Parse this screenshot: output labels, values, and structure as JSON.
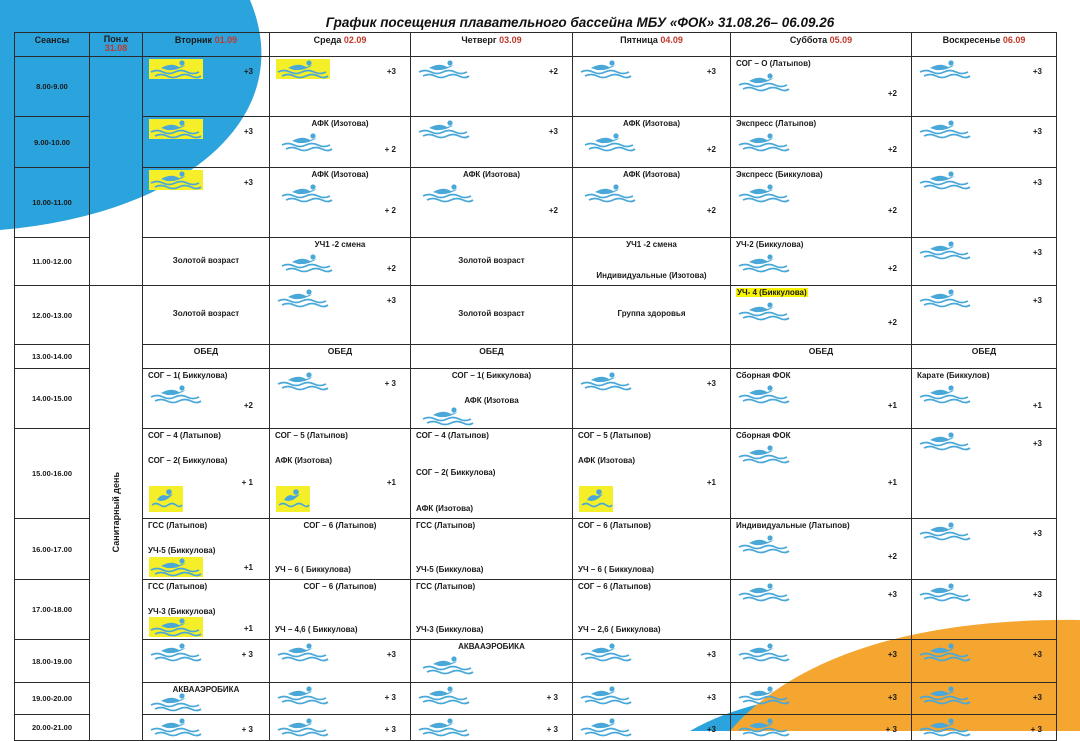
{
  "title": "График посещения плавательного бассейна МБУ «ФОК» 31.08.26– 06.09.26",
  "header": {
    "sessions_label": "Сеансы",
    "monday_label": "Пон.к",
    "monday_date": "31.08",
    "days": [
      {
        "label": "Вторник",
        "date": "01.09"
      },
      {
        "label": "Среда",
        "date": "02.09"
      },
      {
        "label": "Четверг",
        "date": "03.09"
      },
      {
        "label": "Пятница",
        "date": "04.09"
      },
      {
        "label": "Суббота",
        "date": "05.09"
      },
      {
        "label": "Воскресенье",
        "date": "06.09"
      }
    ]
  },
  "sanitary_day": "Санитарный день",
  "lunch_label": "ОБЕД",
  "icons": {
    "swimmer": "swimmer-icon",
    "swimmer_square": "swimmer-square-icon"
  },
  "colors": {
    "wave": "#4aa8d8",
    "highlight": "#f5ef2a",
    "accent_blue": "#2da3dc",
    "accent_orange": "#f4a631",
    "date_red": "#c0392b"
  },
  "rows": [
    {
      "time": "8.00-9.00",
      "cells": [
        {
          "lines": [],
          "count": "+3",
          "swimmers": [
            {
              "hl": true
            }
          ]
        },
        {
          "lines": [],
          "count": "+3",
          "swimmers": [
            {
              "hl": true
            }
          ]
        },
        {
          "lines": [],
          "count": "+2",
          "swimmers": [
            {}
          ]
        },
        {
          "lines": [],
          "count": "+3",
          "swimmers": [
            {}
          ]
        },
        {
          "lines": [
            {
              "text": "СОГ – О (Латыпов)"
            }
          ],
          "count": "+2",
          "swimmers": [
            {}
          ]
        },
        {
          "lines": [],
          "count": "+3",
          "swimmers": [
            {}
          ]
        }
      ]
    },
    {
      "time": "9.00-10.00",
      "cells": [
        {
          "lines": [],
          "count": "+3",
          "swimmers": [
            {
              "hl": true
            }
          ]
        },
        {
          "lines": [
            {
              "text": "АФК (Изотова)",
              "ctr": true
            }
          ],
          "count": "+ 2",
          "swimmers": [
            {}
          ]
        },
        {
          "lines": [],
          "count": "+3",
          "swimmers": [
            {}
          ]
        },
        {
          "lines": [
            {
              "text": "АФК (Изотова)",
              "ctr": true
            }
          ],
          "count": "+2",
          "swimmers": [
            {}
          ]
        },
        {
          "lines": [
            {
              "text": "Экспресс (Латыпов)"
            }
          ],
          "count": "+2",
          "swimmers": [
            {}
          ]
        },
        {
          "lines": [],
          "count": "+3",
          "swimmers": [
            {}
          ]
        }
      ]
    },
    {
      "time": "10.00-11.00",
      "cells": [
        {
          "lines": [],
          "count": "+3",
          "swimmers": [
            {
              "hl": true
            }
          ]
        },
        {
          "lines": [
            {
              "text": "АФК (Изотова)",
              "ctr": true
            }
          ],
          "count": "+ 2",
          "swimmers": [
            {}
          ]
        },
        {
          "lines": [
            {
              "text": "АФК (Изотова)",
              "ctr": true
            }
          ],
          "count": "+2",
          "swimmers": [
            {}
          ]
        },
        {
          "lines": [
            {
              "text": "АФК (Изотова)",
              "ctr": true
            }
          ],
          "count": "+2",
          "swimmers": [
            {}
          ]
        },
        {
          "lines": [
            {
              "text": "Экспресс (Биккулова)"
            }
          ],
          "count": "+2",
          "swimmers": [
            {}
          ]
        },
        {
          "lines": [],
          "count": "+3",
          "swimmers": [
            {}
          ]
        }
      ]
    },
    {
      "time": "11.00-12.00",
      "cells": [
        {
          "lines": [
            {
              "text": "Золотой возраст",
              "ctr": true
            }
          ],
          "count": "",
          "swimmers": []
        },
        {
          "lines": [
            {
              "text": "УЧ1 -2 смена",
              "ctr": true
            }
          ],
          "count": "+2",
          "swimmers": [
            {}
          ]
        },
        {
          "lines": [
            {
              "text": "Золотой возраст",
              "ctr": true
            }
          ],
          "count": "",
          "swimmers": []
        },
        {
          "lines": [
            {
              "text": "УЧ1 -2 смена",
              "ctr": true
            },
            {
              "text": "Индивидуальные (Изотова)",
              "ctr": true
            }
          ],
          "count": "",
          "swimmers": []
        },
        {
          "lines": [
            {
              "text": "УЧ-2 (Биккулова)"
            }
          ],
          "count": "+2",
          "swimmers": [
            {}
          ]
        },
        {
          "lines": [],
          "count": "+3",
          "swimmers": [
            {}
          ]
        }
      ]
    },
    {
      "time": "12.00-13.00",
      "cells": [
        {
          "lines": [
            {
              "text": "Золотой возраст",
              "ctr": true
            }
          ],
          "count": "",
          "swimmers": []
        },
        {
          "lines": [],
          "count": "+3",
          "swimmers": [
            {}
          ]
        },
        {
          "lines": [
            {
              "text": "Золотой возраст",
              "ctr": true
            }
          ],
          "count": "",
          "swimmers": []
        },
        {
          "lines": [
            {
              "text": "Группа здоровья",
              "ctr": true
            }
          ],
          "count": "",
          "swimmers": []
        },
        {
          "lines": [
            {
              "text": "УЧ- 4 (Биккулова)",
              "hl": true
            }
          ],
          "count": "+2",
          "swimmers": [
            {}
          ]
        },
        {
          "lines": [],
          "count": "+3",
          "swimmers": [
            {}
          ]
        }
      ]
    },
    {
      "time": "13.00-14.00",
      "lunch": [
        true,
        true,
        true,
        false,
        true,
        true
      ]
    },
    {
      "time": "14.00-15.00",
      "cells": [
        {
          "lines": [
            {
              "text": "СОГ – 1( Биккулова)"
            }
          ],
          "count": "+2",
          "swimmers": [
            {}
          ]
        },
        {
          "lines": [],
          "count": "+ 3",
          "swimmers": [
            {}
          ]
        },
        {
          "lines": [
            {
              "text": "СОГ – 1( Биккулова)",
              "ctr": true
            },
            {
              "text": "АФК (Изотова",
              "ctr": true
            }
          ],
          "count": "",
          "swimmers": [
            {}
          ]
        },
        {
          "lines": [],
          "count": "+3",
          "swimmers": [
            {}
          ]
        },
        {
          "lines": [
            {
              "text": "Сборная ФОК"
            }
          ],
          "count": "+1",
          "swimmers": [
            {}
          ]
        },
        {
          "lines": [
            {
              "text": "Карате (Биккулов)"
            }
          ],
          "count": "+1",
          "swimmers": [
            {}
          ]
        }
      ]
    },
    {
      "time": "15.00-16.00",
      "cells": [
        {
          "lines": [
            {
              "text": "СОГ – 4 (Латыпов)"
            },
            {
              "text": "СОГ – 2( Биккулова)"
            }
          ],
          "count": "+ 1",
          "swimmers": [
            {
              "sq": true
            }
          ]
        },
        {
          "lines": [
            {
              "text": "СОГ – 5 (Латыпов)"
            },
            {
              "text": "АФК (Изотова)"
            }
          ],
          "count": "+1",
          "swimmers": [
            {
              "sq": true
            }
          ]
        },
        {
          "lines": [
            {
              "text": "СОГ – 4 (Латыпов)"
            },
            {
              "text": "СОГ – 2( Биккулова)"
            },
            {
              "text": "АФК (Изотова)"
            }
          ],
          "count": "",
          "swimmers": []
        },
        {
          "lines": [
            {
              "text": "СОГ – 5 (Латыпов)"
            },
            {
              "text": "АФК (Изотова)"
            }
          ],
          "count": "+1",
          "swimmers": [
            {
              "sq": true
            }
          ]
        },
        {
          "lines": [
            {
              "text": "Сборная ФОК"
            }
          ],
          "count": "+1",
          "swimmers": [
            {}
          ]
        },
        {
          "lines": [],
          "count": "+3",
          "swimmers": [
            {}
          ]
        }
      ]
    },
    {
      "time": "16.00-17.00",
      "cells": [
        {
          "lines": [
            {
              "text": "ГСС (Латыпов)"
            },
            {
              "text": "УЧ-5 (Биккулова)"
            }
          ],
          "count": "+1",
          "swimmers": [
            {
              "hl": true
            }
          ]
        },
        {
          "lines": [
            {
              "text": "СОГ – 6 (Латыпов)",
              "ctr": true
            },
            {
              "text": "УЧ – 6 ( Биккулова)"
            }
          ],
          "count": "",
          "swimmers": []
        },
        {
          "lines": [
            {
              "text": "ГСС (Латыпов)"
            },
            {
              "text": "УЧ-5 (Биккулова)"
            }
          ],
          "count": "",
          "swimmers": []
        },
        {
          "lines": [
            {
              "text": "СОГ – 6 (Латыпов)"
            },
            {
              "text": "УЧ – 6 ( Биккулова)"
            }
          ],
          "count": "",
          "swimmers": []
        },
        {
          "lines": [
            {
              "text": "Индивидуальные (Латыпов)"
            }
          ],
          "count": "+2",
          "swimmers": [
            {}
          ]
        },
        {
          "lines": [],
          "count": "+3",
          "swimmers": [
            {}
          ]
        }
      ]
    },
    {
      "time": "17.00-18.00",
      "cells": [
        {
          "lines": [
            {
              "text": "ГСС (Латыпов)"
            },
            {
              "text": "УЧ-3 (Биккулова)"
            }
          ],
          "count": "+1",
          "swimmers": [
            {
              "hl": true
            }
          ]
        },
        {
          "lines": [
            {
              "text": "СОГ – 6 (Латыпов)",
              "ctr": true
            },
            {
              "text": "УЧ – 4,6 ( Биккулова)"
            }
          ],
          "count": "",
          "swimmers": []
        },
        {
          "lines": [
            {
              "text": "ГСС (Латыпов)"
            },
            {
              "text": "УЧ-3 (Биккулова)"
            }
          ],
          "count": "",
          "swimmers": []
        },
        {
          "lines": [
            {
              "text": "СОГ – 6 (Латыпов)"
            },
            {
              "text": "УЧ – 2,6 ( Биккулова)"
            }
          ],
          "count": "",
          "swimmers": []
        },
        {
          "lines": [],
          "count": "+3",
          "swimmers": [
            {}
          ]
        },
        {
          "lines": [],
          "count": "+3",
          "swimmers": [
            {}
          ]
        }
      ]
    },
    {
      "time": "18.00-19.00",
      "cells": [
        {
          "lines": [],
          "count": "+ 3",
          "swimmers": [
            {}
          ]
        },
        {
          "lines": [],
          "count": "+3",
          "swimmers": [
            {}
          ]
        },
        {
          "lines": [
            {
              "text": "АКВААЭРОБИКА",
              "ctr": true
            }
          ],
          "count": "",
          "swimmers": [
            {}
          ]
        },
        {
          "lines": [],
          "count": "+3",
          "swimmers": [
            {}
          ]
        },
        {
          "lines": [],
          "count": "+3",
          "swimmers": [
            {}
          ]
        },
        {
          "lines": [],
          "count": "+3",
          "swimmers": [
            {}
          ]
        }
      ]
    },
    {
      "time": "19.00-20.00",
      "cells": [
        {
          "lines": [
            {
              "text": "АКВААЭРОБИКА",
              "ctr": true
            }
          ],
          "count": "",
          "swimmers": [
            {}
          ]
        },
        {
          "lines": [],
          "count": "+ 3",
          "swimmers": [
            {}
          ]
        },
        {
          "lines": [],
          "count": "+ 3",
          "swimmers": [
            {}
          ]
        },
        {
          "lines": [],
          "count": "+3",
          "swimmers": [
            {}
          ]
        },
        {
          "lines": [],
          "count": "+3",
          "swimmers": [
            {}
          ]
        },
        {
          "lines": [],
          "count": "+3",
          "swimmers": [
            {}
          ]
        }
      ]
    },
    {
      "time": "20.00-21.00",
      "cells": [
        {
          "lines": [],
          "count": "+ 3",
          "swimmers": [
            {}
          ]
        },
        {
          "lines": [],
          "count": "+ 3",
          "swimmers": [
            {}
          ]
        },
        {
          "lines": [],
          "count": "+ 3",
          "swimmers": [
            {}
          ]
        },
        {
          "lines": [],
          "count": "+3",
          "swimmers": [
            {}
          ]
        },
        {
          "lines": [],
          "count": "+ 3",
          "swimmers": [
            {}
          ]
        },
        {
          "lines": [],
          "count": "+ 3",
          "swimmers": [
            {}
          ]
        }
      ]
    }
  ]
}
